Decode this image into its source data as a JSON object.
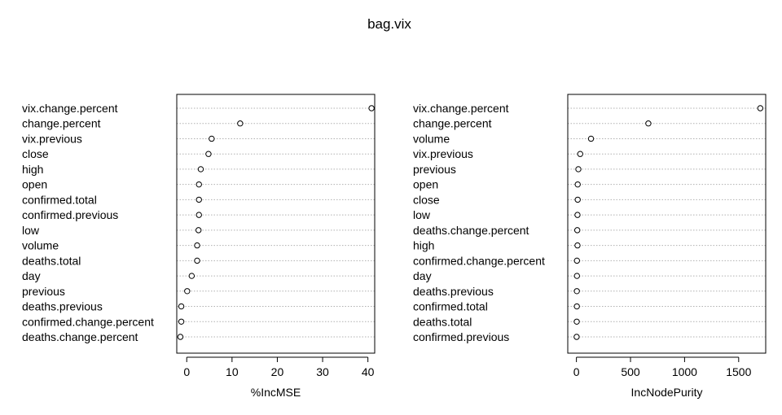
{
  "title": "bag.vix",
  "chart_data": [
    {
      "type": "dotchart",
      "xlabel": "%IncMSE",
      "xlim": [
        -2.2,
        41.5
      ],
      "xticks": [
        0,
        10,
        20,
        30,
        40
      ],
      "grid": true,
      "labels": [
        "vix.change.percent",
        "change.percent",
        "vix.previous",
        "close",
        "high",
        "open",
        "confirmed.total",
        "confirmed.previous",
        "low",
        "volume",
        "deaths.total",
        "day",
        "previous",
        "deaths.previous",
        "confirmed.change.percent",
        "deaths.change.percent"
      ],
      "values": [
        40.8,
        11.8,
        5.5,
        4.8,
        3.1,
        2.7,
        2.7,
        2.7,
        2.6,
        2.3,
        2.3,
        1.1,
        0.1,
        -1.2,
        -1.2,
        -1.4
      ]
    },
    {
      "type": "dotchart",
      "xlabel": "IncNodePurity",
      "xlim": [
        -80,
        1750
      ],
      "xticks": [
        0,
        500,
        1000,
        1500
      ],
      "grid": true,
      "labels": [
        "vix.change.percent",
        "change.percent",
        "volume",
        "vix.previous",
        "previous",
        "open",
        "close",
        "low",
        "deaths.change.percent",
        "high",
        "confirmed.change.percent",
        "day",
        "deaths.previous",
        "confirmed.total",
        "deaths.total",
        "confirmed.previous"
      ],
      "values": [
        1700,
        665,
        135,
        35,
        18,
        12,
        12,
        10,
        8,
        10,
        5,
        5,
        4,
        4,
        3,
        2
      ]
    }
  ]
}
